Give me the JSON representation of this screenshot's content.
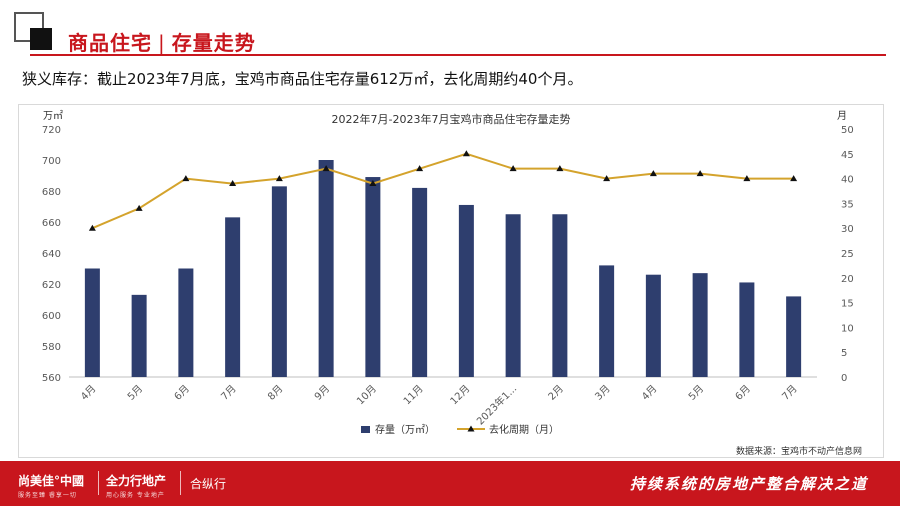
{
  "header": {
    "title_part1": "商品住宅",
    "title_part2": "存量走势"
  },
  "subtitle": "狭义库存：截止2023年7月底，宝鸡市商品住宅存量612万㎡，去化周期约40个月。",
  "source": "数据来源：宝鸡市不动产信息网",
  "footer": {
    "brand1": "尚美佳°中國",
    "brand1_sub": "服务至臻 睿享一切",
    "brand2": "全力行地产",
    "brand2_sub": "用心服务 专业地产",
    "brand3": "合纵行",
    "slogan": "持续系统的房地产整合解决之道"
  },
  "colors": {
    "brand_red": "#c8161d",
    "bar": "#2e3e6e",
    "line": "#d4a32c",
    "marker": "#111111"
  },
  "chart_data": {
    "type": "bar+line",
    "title": "2022年7月-2023年7月宝鸡市商品住宅存量走势",
    "left_axis_unit": "万㎡",
    "right_axis_unit": "月",
    "categories": [
      "4月",
      "5月",
      "6月",
      "7月",
      "8月",
      "9月",
      "10月",
      "11月",
      "12月",
      "2023年1...",
      "2月",
      "3月",
      "4月",
      "5月",
      "6月",
      "7月"
    ],
    "y_left": {
      "min": 560,
      "max": 720,
      "step": 20
    },
    "y_right": {
      "min": 0,
      "max": 50,
      "step": 5
    },
    "grid": false,
    "legend_position": "bottom",
    "series": [
      {
        "name": "存量（万㎡）",
        "type": "bar",
        "axis": "left",
        "values": [
          630,
          613,
          630,
          663,
          683,
          700,
          689,
          682,
          671,
          665,
          665,
          632,
          626,
          627,
          621,
          612
        ]
      },
      {
        "name": "去化周期（月）",
        "type": "line",
        "axis": "right",
        "values": [
          30,
          34,
          40,
          39,
          40,
          42,
          39,
          42,
          45,
          42,
          42,
          40,
          41,
          41,
          40,
          40
        ]
      }
    ]
  }
}
